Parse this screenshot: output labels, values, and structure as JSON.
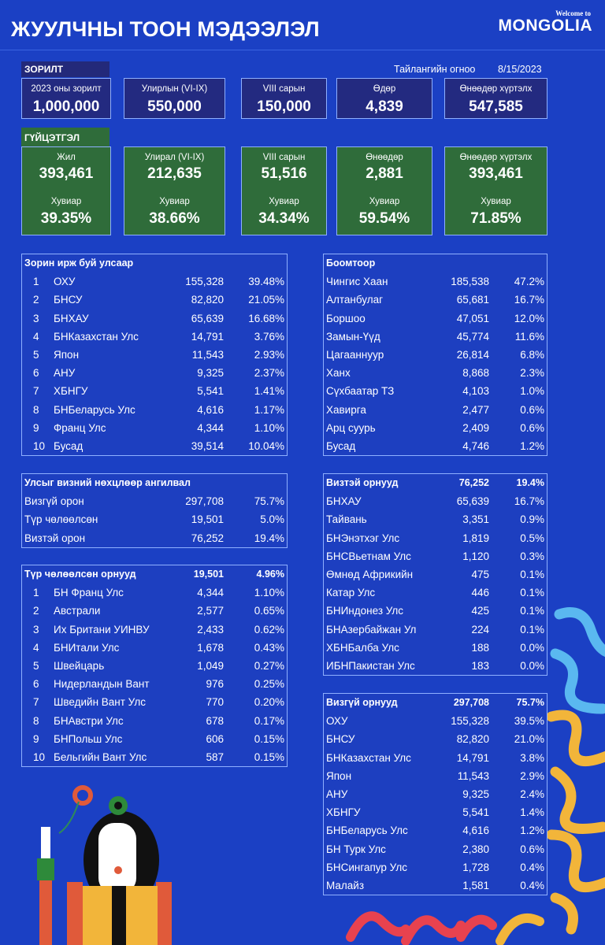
{
  "header": {
    "title": "ЖУУЛЧНЫ ТООН МЭДЭЭЛЭЛ",
    "logo_small": "Welcome to",
    "logo_big": "MONGOLIA"
  },
  "goals": {
    "label": "ЗОРИЛТ",
    "report_date_label": "Тайлангийн огноо",
    "report_date": "8/15/2023",
    "cards": [
      {
        "label": "2023 оны зорилт",
        "value": "1,000,000"
      },
      {
        "label": "Улирлын (VI-IX)",
        "value": "550,000"
      },
      {
        "label": "VIII сарын",
        "value": "150,000"
      },
      {
        "label": "Өдөр",
        "value": "4,839"
      },
      {
        "label": "Өнөөдөр хүртэлх",
        "value": "547,585"
      }
    ]
  },
  "achievement": {
    "label": "ГҮЙЦЭТГЭЛ",
    "cards": [
      {
        "label": "Жил",
        "value": "393,461",
        "pct_label": "Хувиар",
        "pct": "39.35%"
      },
      {
        "label": "Улирал (VI-IX)",
        "value": "212,635",
        "pct_label": "Хувиар",
        "pct": "38.66%"
      },
      {
        "label": "VIII сарын",
        "value": "51,516",
        "pct_label": "Хувиар",
        "pct": "34.34%"
      },
      {
        "label": "Өнөөдөр",
        "value": "2,881",
        "pct_label": "Хувиар",
        "pct": "59.54%"
      },
      {
        "label": "Өнөөдөр хүртэлх",
        "value": "393,461",
        "pct_label": "Хувиар",
        "pct": "71.85%"
      }
    ]
  },
  "tables": {
    "by_country": {
      "title": "Зорин ирж буй улсаар",
      "rows": [
        [
          "1",
          "ОХУ",
          "155,328",
          "39.48%"
        ],
        [
          "2",
          "БНСУ",
          "82,820",
          "21.05%"
        ],
        [
          "3",
          "БНХАУ",
          "65,639",
          "16.68%"
        ],
        [
          "4",
          "БНКазахстан Улс",
          "14,791",
          "3.76%"
        ],
        [
          "5",
          "Япон",
          "11,543",
          "2.93%"
        ],
        [
          "6",
          "АНУ",
          "9,325",
          "2.37%"
        ],
        [
          "7",
          "ХБНГУ",
          "5,541",
          "1.41%"
        ],
        [
          "8",
          "БНБеларусь Улс",
          "4,616",
          "1.17%"
        ],
        [
          "9",
          "Франц Улс",
          "4,344",
          "1.10%"
        ],
        [
          "10",
          "Бусад",
          "39,514",
          "10.04%"
        ]
      ]
    },
    "visa_class": {
      "title": "Улсыг визний нөхцлөөр ангилвал",
      "rows": [
        [
          "",
          "Визгүй орон",
          "297,708",
          "75.7%"
        ],
        [
          "",
          "Түр чөлөөлсөн",
          "19,501",
          "5.0%"
        ],
        [
          "",
          "Визтэй орон",
          "76,252",
          "19.4%"
        ]
      ]
    },
    "temp_exempt": {
      "title": "Түр чөлөөлсөн орнууд",
      "total": "19,501",
      "total_pct": "4.96%",
      "rows": [
        [
          "1",
          "БН Франц Улс",
          "4,344",
          "1.10%"
        ],
        [
          "2",
          "Австрали",
          "2,577",
          "0.65%"
        ],
        [
          "3",
          "Их Британи УИНВУ",
          "2,433",
          "0.62%"
        ],
        [
          "4",
          "БНИтали Улс",
          "1,678",
          "0.43%"
        ],
        [
          "5",
          "Швейцарь",
          "1,049",
          "0.27%"
        ],
        [
          "6",
          "Нидерландын Вант",
          "976",
          "0.25%"
        ],
        [
          "7",
          "Шведийн Вант Улс",
          "770",
          "0.20%"
        ],
        [
          "8",
          "БНАвстри Улс",
          "678",
          "0.17%"
        ],
        [
          "9",
          "БНПольш Улс",
          "606",
          "0.15%"
        ],
        [
          "10",
          "Бельгийн Вант Улс",
          "587",
          "0.15%"
        ]
      ]
    },
    "border_points": {
      "title": "Боомтоор",
      "rows": [
        [
          "",
          "Чингис Хаан",
          "185,538",
          "47.2%"
        ],
        [
          "",
          "Алтанбулаг",
          "65,681",
          "16.7%"
        ],
        [
          "",
          "Боршоо",
          "47,051",
          "12.0%"
        ],
        [
          "",
          "Замын-Үүд",
          "45,774",
          "11.6%"
        ],
        [
          "",
          "Цагааннуур",
          "26,814",
          "6.8%"
        ],
        [
          "",
          "Ханх",
          "8,868",
          "2.3%"
        ],
        [
          "",
          "Сүхбаатар ТЗ",
          "4,103",
          "1.0%"
        ],
        [
          "",
          "Хавирга",
          "2,477",
          "0.6%"
        ],
        [
          "",
          "Арц суурь",
          "2,409",
          "0.6%"
        ],
        [
          "",
          "Бусад",
          "4,746",
          "1.2%"
        ]
      ]
    },
    "visa_required": {
      "title": "Визтэй орнууд",
      "total": "76,252",
      "total_pct": "19.4%",
      "rows": [
        [
          "",
          "БНХАУ",
          "65,639",
          "16.7%"
        ],
        [
          "",
          "Тайвань",
          "3,351",
          "0.9%"
        ],
        [
          "",
          "БНЭнэтхэг Улс",
          "1,819",
          "0.5%"
        ],
        [
          "",
          "БНСВьетнам Улс",
          "1,120",
          "0.3%"
        ],
        [
          "",
          "Өмнөд Африкийн",
          "475",
          "0.1%"
        ],
        [
          "",
          "Катар Улс",
          "446",
          "0.1%"
        ],
        [
          "",
          "БНИндонез Улс",
          "425",
          "0.1%"
        ],
        [
          "",
          "БНАзербайжан Ул",
          "224",
          "0.1%"
        ],
        [
          "",
          "ХБНБалба Улс",
          "188",
          "0.0%"
        ],
        [
          "",
          "ИБНПакистан Улс",
          "183",
          "0.0%"
        ]
      ]
    },
    "visa_free": {
      "title": "Визгүй орнууд",
      "total": "297,708",
      "total_pct": "75.7%",
      "rows": [
        [
          "",
          "ОХУ",
          "155,328",
          "39.5%"
        ],
        [
          "",
          "БНСУ",
          "82,820",
          "21.0%"
        ],
        [
          "",
          "БНКазахстан Улс",
          "14,791",
          "3.8%"
        ],
        [
          "",
          "Япон",
          "11,543",
          "2.9%"
        ],
        [
          "",
          "АНУ",
          "9,325",
          "2.4%"
        ],
        [
          "",
          "ХБНГУ",
          "5,541",
          "1.4%"
        ],
        [
          "",
          "БНБеларусь Улс",
          "4,616",
          "1.2%"
        ],
        [
          "",
          "БН Турк Улс",
          "2,380",
          "0.6%"
        ],
        [
          "",
          "БНСингапур Улс",
          "1,728",
          "0.4%"
        ],
        [
          "",
          "Малайз",
          "1,581",
          "0.4%"
        ]
      ]
    }
  },
  "colors": {
    "background": "#1b40c4",
    "target_card": "#232a80",
    "achievement_card": "#2f6c3a",
    "pattern_yellow": "#f2b53a",
    "pattern_red": "#e8424f",
    "pattern_lightblue": "#5ab8f0"
  }
}
